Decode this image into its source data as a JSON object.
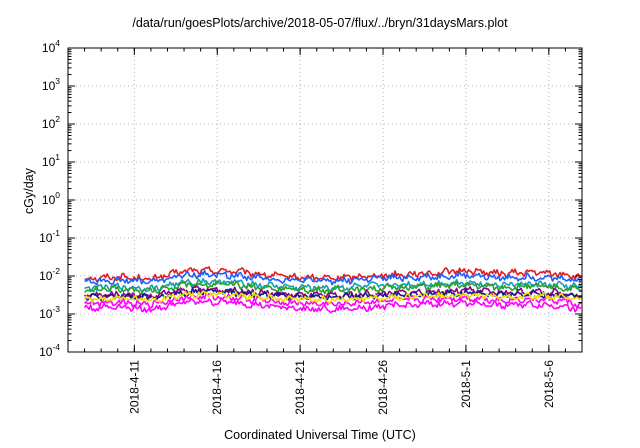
{
  "chart_data": {
    "type": "line",
    "title": "/data/run/goesPlots/archive/2018-05-07/flux/../bryn/31daysMars.plot",
    "xlabel": "Coordinated Universal Time (UTC)",
    "ylabel": "cGy/day",
    "y_scale": "log",
    "ylim": [
      0.0001,
      10000
    ],
    "xlim": [
      "2018-04-07",
      "2018-05-08"
    ],
    "grid": true,
    "legend": "none",
    "y_ticks": [
      {
        "base": "10",
        "exp": "-4"
      },
      {
        "base": "10",
        "exp": "-3"
      },
      {
        "base": "10",
        "exp": "-2"
      },
      {
        "base": "10",
        "exp": "-1"
      },
      {
        "base": "10",
        "exp": "0"
      },
      {
        "base": "10",
        "exp": "1"
      },
      {
        "base": "10",
        "exp": "2"
      },
      {
        "base": "10",
        "exp": "3"
      },
      {
        "base": "10",
        "exp": "4"
      }
    ],
    "x_ticks": [
      "2018-4-11",
      "2018-4-16",
      "2018-4-21",
      "2018-4-26",
      "2018-5-1",
      "2018-5-6"
    ],
    "x_tick_dates": [
      "2018-04-11",
      "2018-04-16",
      "2018-04-21",
      "2018-04-26",
      "2018-05-01",
      "2018-05-06"
    ],
    "dates": [
      "2018-04-08",
      "2018-04-10",
      "2018-04-12",
      "2018-04-14",
      "2018-04-15",
      "2018-04-17",
      "2018-04-19",
      "2018-04-21",
      "2018-04-23",
      "2018-04-25",
      "2018-04-27",
      "2018-04-29",
      "2018-05-01",
      "2018-05-03",
      "2018-05-05",
      "2018-05-07",
      "2018-05-08"
    ],
    "series": [
      {
        "color": "#e41a1c",
        "values": [
          0.0085,
          0.0095,
          0.0082,
          0.0135,
          0.014,
          0.0135,
          0.0105,
          0.009,
          0.0088,
          0.01,
          0.011,
          0.012,
          0.014,
          0.0115,
          0.0125,
          0.011,
          0.009
        ]
      },
      {
        "color": "#1f5fff",
        "values": [
          0.0072,
          0.0078,
          0.007,
          0.0105,
          0.011,
          0.0105,
          0.0085,
          0.0076,
          0.0075,
          0.0082,
          0.009,
          0.0095,
          0.0105,
          0.009,
          0.0095,
          0.0085,
          0.0075
        ]
      },
      {
        "color": "#17a0b0",
        "values": [
          0.0048,
          0.0052,
          0.0046,
          0.0068,
          0.0072,
          0.0068,
          0.0056,
          0.005,
          0.0049,
          0.0054,
          0.0058,
          0.0062,
          0.0068,
          0.0058,
          0.0062,
          0.0056,
          0.005
        ]
      },
      {
        "color": "#2ca02c",
        "values": [
          0.0042,
          0.0045,
          0.004,
          0.0058,
          0.006,
          0.0058,
          0.0048,
          0.0043,
          0.0042,
          0.0046,
          0.005,
          0.0053,
          0.0058,
          0.005,
          0.0053,
          0.0048,
          0.0043
        ]
      },
      {
        "color": "#8b008b",
        "values": [
          0.003,
          0.0033,
          0.0029,
          0.0042,
          0.0044,
          0.0042,
          0.0035,
          0.0031,
          0.003,
          0.0033,
          0.0036,
          0.0038,
          0.0042,
          0.0036,
          0.0038,
          0.0035,
          0.0031
        ]
      },
      {
        "color": "#1a1a8c",
        "values": [
          0.0027,
          0.0029,
          0.0026,
          0.0037,
          0.0039,
          0.0037,
          0.0031,
          0.0028,
          0.0027,
          0.003,
          0.0032,
          0.0034,
          0.0037,
          0.0032,
          0.0034,
          0.0031,
          0.0028
        ]
      },
      {
        "color": "#ff00ff",
        "values": [
          0.0019,
          0.0021,
          0.0018,
          0.0027,
          0.0029,
          0.0027,
          0.0022,
          0.0019,
          0.0018,
          0.0021,
          0.0023,
          0.0025,
          0.0027,
          0.0023,
          0.0025,
          0.0022,
          0.0016
        ]
      },
      {
        "color": "#ff00ff",
        "values": [
          0.0014,
          0.0016,
          0.0013,
          0.002,
          0.0021,
          0.002,
          0.0016,
          0.0014,
          0.0013,
          0.0015,
          0.0017,
          0.0018,
          0.002,
          0.0017,
          0.0018,
          0.0016,
          0.0012
        ]
      },
      {
        "color": "#f0e000",
        "values": [
          0.0024,
          0.0026,
          0.0023,
          0.0032,
          0.0034,
          0.0032,
          0.0027,
          0.0024,
          0.0024,
          0.0026,
          0.0028,
          0.003,
          0.0032,
          0.0028,
          0.003,
          0.0027,
          0.0024
        ]
      }
    ]
  }
}
